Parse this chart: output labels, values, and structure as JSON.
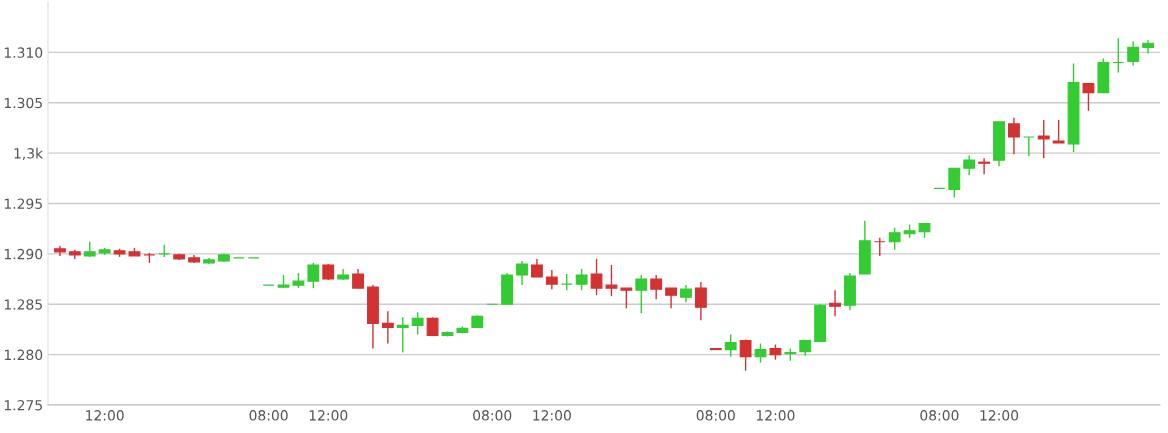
{
  "chart_data": {
    "type": "candlestick",
    "categories": [
      null,
      null,
      null,
      "12:00",
      null,
      null,
      null,
      null,
      null,
      null,
      null,
      null,
      null,
      null,
      "08:00",
      null,
      null,
      null,
      "12:00",
      null,
      null,
      null,
      null,
      null,
      null,
      null,
      null,
      null,
      null,
      "08:00",
      null,
      null,
      null,
      "12:00",
      null,
      null,
      null,
      null,
      null,
      null,
      null,
      null,
      null,
      null,
      "08:00",
      null,
      null,
      null,
      "12:00",
      null,
      null,
      null,
      null,
      null,
      null,
      null,
      null,
      null,
      null,
      "08:00",
      null,
      null,
      null,
      "12:00",
      null,
      null,
      null,
      null,
      null,
      null,
      null,
      null,
      null,
      null
    ],
    "ohlc": [
      [
        1.2905,
        1.2908,
        1.2898,
        1.2902
      ],
      [
        1.2902,
        1.2904,
        1.2895,
        1.2899
      ],
      [
        1.2898,
        1.2912,
        1.2897,
        1.2902
      ],
      [
        1.2901,
        1.2906,
        1.2899,
        1.2904
      ],
      [
        1.2903,
        1.2905,
        1.2897,
        1.29
      ],
      [
        1.2902,
        1.2906,
        1.2898,
        1.2898
      ],
      [
        1.2899,
        1.2901,
        1.2891,
        1.2899
      ],
      [
        1.29,
        1.2909,
        1.2897,
        1.29
      ],
      [
        1.2899,
        1.29,
        1.2894,
        1.2895
      ],
      [
        1.2896,
        1.2899,
        1.2891,
        1.2892
      ],
      [
        1.2891,
        1.2896,
        1.289,
        1.2894
      ],
      [
        1.2893,
        1.29,
        1.2892,
        1.2899
      ],
      [
        1.2896,
        1.2896,
        1.2896,
        1.2896
      ],
      [
        1.2896,
        1.2896,
        1.2896,
        1.2896
      ],
      [
        1.2869,
        1.2869,
        1.2869,
        1.2869
      ],
      [
        1.2867,
        1.2879,
        1.2866,
        1.2869
      ],
      [
        1.2869,
        1.2881,
        1.2866,
        1.2873
      ],
      [
        1.2873,
        1.2891,
        1.2866,
        1.2889
      ],
      [
        1.2889,
        1.289,
        1.2874,
        1.2875
      ],
      [
        1.2875,
        1.2885,
        1.2874,
        1.2879
      ],
      [
        1.288,
        1.2885,
        1.2866,
        1.2866
      ],
      [
        1.2867,
        1.2869,
        1.2806,
        1.2831
      ],
      [
        1.2831,
        1.2843,
        1.2811,
        1.2827
      ],
      [
        1.2827,
        1.2837,
        1.2802,
        1.2829
      ],
      [
        1.2829,
        1.2842,
        1.282,
        1.2836
      ],
      [
        1.2836,
        1.2837,
        1.2819,
        1.2819
      ],
      [
        1.2819,
        1.2823,
        1.2818,
        1.2822
      ],
      [
        1.2822,
        1.2828,
        1.2821,
        1.2826
      ],
      [
        1.2827,
        1.2839,
        1.2827,
        1.2838
      ],
      [
        1.285,
        1.285,
        1.285,
        1.285
      ],
      [
        1.285,
        1.2881,
        1.285,
        1.2879
      ],
      [
        1.2879,
        1.2893,
        1.2869,
        1.289
      ],
      [
        1.2889,
        1.2895,
        1.2877,
        1.2877
      ],
      [
        1.2877,
        1.2884,
        1.2865,
        1.287
      ],
      [
        1.287,
        1.288,
        1.2864,
        1.287
      ],
      [
        1.287,
        1.2885,
        1.2864,
        1.2879
      ],
      [
        1.288,
        1.2895,
        1.2859,
        1.2866
      ],
      [
        1.2869,
        1.2889,
        1.2858,
        1.2866
      ],
      [
        1.2866,
        1.2866,
        1.2846,
        1.2864
      ],
      [
        1.2864,
        1.2879,
        1.2841,
        1.2875
      ],
      [
        1.2875,
        1.2879,
        1.2855,
        1.2865
      ],
      [
        1.2866,
        1.2866,
        1.2846,
        1.2859
      ],
      [
        1.2857,
        1.2869,
        1.2852,
        1.2865
      ],
      [
        1.2866,
        1.2872,
        1.2834,
        1.2847
      ],
      [
        1.2806,
        1.2806,
        1.2805,
        1.2805
      ],
      [
        1.2805,
        1.282,
        1.2798,
        1.2812
      ],
      [
        1.2814,
        1.2815,
        1.2784,
        1.2798
      ],
      [
        1.2798,
        1.2811,
        1.2792,
        1.2805
      ],
      [
        1.2806,
        1.281,
        1.2795,
        1.28
      ],
      [
        1.2801,
        1.2806,
        1.2794,
        1.2802
      ],
      [
        1.2803,
        1.2814,
        1.2799,
        1.2814
      ],
      [
        1.2813,
        1.285,
        1.2813,
        1.2849
      ],
      [
        1.2851,
        1.2864,
        1.2838,
        1.2848
      ],
      [
        1.2849,
        1.2881,
        1.2844,
        1.2878
      ],
      [
        1.288,
        1.2933,
        1.288,
        1.2913
      ],
      [
        1.2912,
        1.2916,
        1.2898,
        1.2912
      ],
      [
        1.2912,
        1.2926,
        1.2904,
        1.2921
      ],
      [
        1.292,
        1.2929,
        1.2916,
        1.2923
      ],
      [
        1.2922,
        1.293,
        1.2916,
        1.293
      ],
      [
        1.2965,
        1.2965,
        1.2965,
        1.2965
      ],
      [
        1.2964,
        1.2985,
        1.2956,
        1.2985
      ],
      [
        1.2985,
        1.2998,
        1.2978,
        1.2993
      ],
      [
        1.2991,
        1.2995,
        1.2979,
        1.299
      ],
      [
        1.2993,
        1.3031,
        1.2987,
        1.3031
      ],
      [
        1.3029,
        1.3035,
        1.2999,
        1.3016
      ],
      [
        1.3016,
        1.3016,
        1.2997,
        1.3016
      ],
      [
        1.3017,
        1.3033,
        1.2995,
        1.3014
      ],
      [
        1.3012,
        1.3033,
        1.301,
        1.301
      ],
      [
        1.3009,
        1.3089,
        1.3001,
        1.307
      ],
      [
        1.3069,
        1.3069,
        1.3042,
        1.306
      ],
      [
        1.306,
        1.3094,
        1.306,
        1.309
      ],
      [
        1.309,
        1.3114,
        1.308,
        1.309
      ],
      [
        1.3091,
        1.3111,
        1.3087,
        1.3105
      ],
      [
        1.3105,
        1.3112,
        1.3099,
        1.3109
      ]
    ],
    "colors": [
      "#d23232",
      "#d23232",
      "#33cc33",
      "#33cc33",
      "#d23232",
      "#d23232",
      "#d23232",
      "#33cc33",
      "#d23232",
      "#d23232",
      "#33cc33",
      "#33cc33",
      "#33cc33",
      "#33cc33",
      "#33cc33",
      "#33cc33",
      "#33cc33",
      "#33cc33",
      "#d23232",
      "#33cc33",
      "#d23232",
      "#d23232",
      "#d23232",
      "#33cc33",
      "#33cc33",
      "#d23232",
      "#33cc33",
      "#33cc33",
      "#33cc33",
      "#33cc33",
      "#33cc33",
      "#33cc33",
      "#d23232",
      "#d23232",
      "#33cc33",
      "#33cc33",
      "#d23232",
      "#d23232",
      "#d23232",
      "#33cc33",
      "#d23232",
      "#d23232",
      "#33cc33",
      "#d23232",
      "#d23232",
      "#33cc33",
      "#d23232",
      "#33cc33",
      "#d23232",
      "#33cc33",
      "#33cc33",
      "#33cc33",
      "#d23232",
      "#33cc33",
      "#33cc33",
      "#d23232",
      "#33cc33",
      "#33cc33",
      "#33cc33",
      "#33cc33",
      "#33cc33",
      "#33cc33",
      "#d23232",
      "#33cc33",
      "#d23232",
      "#33cc33",
      "#d23232",
      "#d23232",
      "#33cc33",
      "#d23232",
      "#33cc33",
      "#33cc33",
      "#33cc33",
      "#33cc33"
    ],
    "ylim": [
      1.275,
      1.315
    ],
    "yticks": [
      {
        "value": 1.275,
        "label": "1.275"
      },
      {
        "value": 1.28,
        "label": "1.280"
      },
      {
        "value": 1.285,
        "label": "1.285"
      },
      {
        "value": 1.29,
        "label": "1.290"
      },
      {
        "value": 1.295,
        "label": "1.295"
      },
      {
        "value": 1.3,
        "label": "1,3k"
      },
      {
        "value": 1.305,
        "label": "1.305"
      },
      {
        "value": 1.31,
        "label": "1.310"
      }
    ],
    "grid": "y"
  }
}
